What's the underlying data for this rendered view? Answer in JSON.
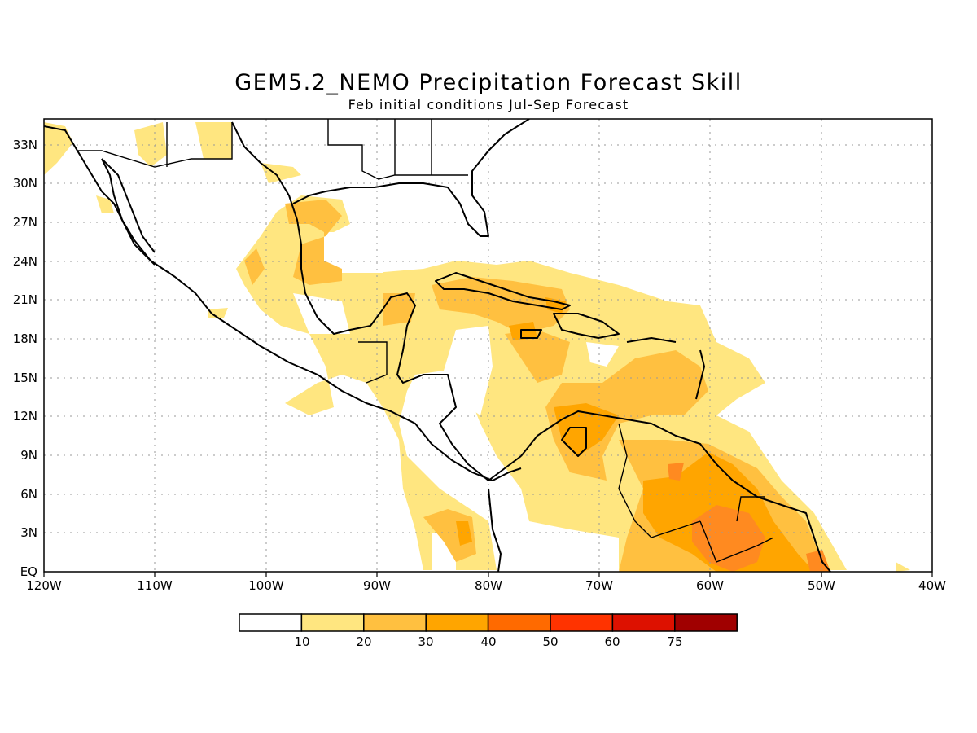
{
  "title": "GEM5.2_NEMO Precipitation Forecast Skill",
  "subtitle": "Feb initial conditions  Jul-Sep Forecast",
  "map": {
    "lon_range": [
      -120,
      -40
    ],
    "lat_range": [
      0,
      35
    ],
    "lon_ticks": [
      "120W",
      "110W",
      "100W",
      "90W",
      "80W",
      "70W",
      "60W",
      "50W",
      "40W"
    ],
    "lat_ticks": [
      "EQ",
      "3N",
      "6N",
      "9N",
      "12N",
      "15N",
      "18N",
      "21N",
      "24N",
      "27N",
      "30N",
      "33N"
    ],
    "grid": "dotted"
  },
  "legend": {
    "labels": [
      "10",
      "20",
      "30",
      "40",
      "50",
      "60",
      "75"
    ],
    "colors": [
      "#ffffff",
      "#ffe680",
      "#ffc040",
      "#ffa500",
      "#ff6a00",
      "#ff3300",
      "#dd1100",
      "#a00000"
    ]
  }
}
